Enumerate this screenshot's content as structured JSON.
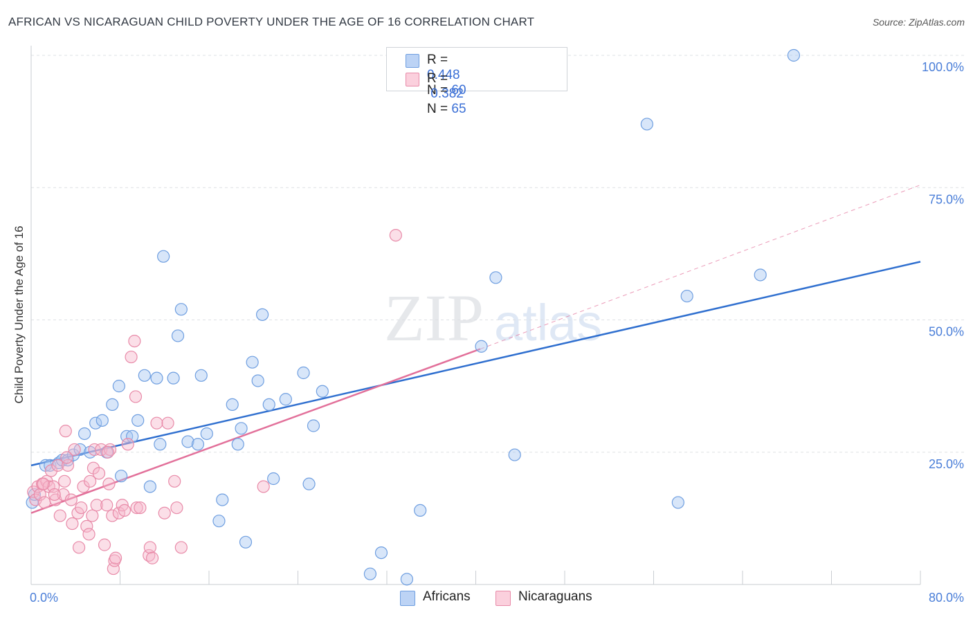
{
  "title": "AFRICAN VS NICARAGUAN CHILD POVERTY UNDER THE AGE OF 16 CORRELATION CHART",
  "source": "Source: ZipAtlas.com",
  "watermark": {
    "zip": "ZIP",
    "atlas": "atlas"
  },
  "legend": {
    "r_label": "R =",
    "n_label": "N =",
    "rows": [
      {
        "name": "Africans",
        "r": "0.448",
        "n": "60",
        "color": "#a9c7f2",
        "stroke": "#6e9ee0"
      },
      {
        "name": "Nicaraguans",
        "r": "0.382",
        "n": "65",
        "color": "#f7b9cc",
        "stroke": "#e88aa8"
      }
    ]
  },
  "chart_data": {
    "type": "scatter",
    "title": "AFRICAN VS NICARAGUAN CHILD POVERTY UNDER THE AGE OF 16 CORRELATION CHART",
    "xlabel": "",
    "ylabel": "Child Poverty Under the Age of 16",
    "xlim": [
      0,
      80
    ],
    "ylim": [
      0,
      100
    ],
    "x_tick_labels": [
      "0.0%",
      "80.0%"
    ],
    "y_tick_labels": [
      "25.0%",
      "50.0%",
      "75.0%",
      "100.0%"
    ],
    "y_tick_values": [
      25,
      50,
      75,
      100
    ],
    "x_ticks_minor": [
      0,
      8,
      16,
      24,
      32,
      40,
      48,
      56,
      64,
      72,
      80
    ],
    "grid": "horizontal dashed",
    "legend_position": "top-center",
    "series": [
      {
        "name": "Africans",
        "color": "#6e9ee0",
        "fill": "#a9c7f2",
        "trend": {
          "x0": 0,
          "y0": 22.5,
          "x1": 80,
          "y1": 61,
          "color": "#2f6fcf"
        },
        "points": [
          [
            0.1,
            15.5
          ],
          [
            0.3,
            17.0
          ],
          [
            1.3,
            22.5
          ],
          [
            1.7,
            22.5
          ],
          [
            2.5,
            23.0
          ],
          [
            2.8,
            23.5
          ],
          [
            3.3,
            23.5
          ],
          [
            3.8,
            24.5
          ],
          [
            4.4,
            25.5
          ],
          [
            4.8,
            28.5
          ],
          [
            5.3,
            25.0
          ],
          [
            5.8,
            30.5
          ],
          [
            6.4,
            31.0
          ],
          [
            6.8,
            25.0
          ],
          [
            7.3,
            34.0
          ],
          [
            7.9,
            37.5
          ],
          [
            8.1,
            20.5
          ],
          [
            8.6,
            28.0
          ],
          [
            9.1,
            28.0
          ],
          [
            9.6,
            31.0
          ],
          [
            10.2,
            39.5
          ],
          [
            10.7,
            18.5
          ],
          [
            11.3,
            39.0
          ],
          [
            11.6,
            26.5
          ],
          [
            11.9,
            62.0
          ],
          [
            12.8,
            39.0
          ],
          [
            13.2,
            47.0
          ],
          [
            13.5,
            52.0
          ],
          [
            14.1,
            27.0
          ],
          [
            15.0,
            26.5
          ],
          [
            15.3,
            39.5
          ],
          [
            15.8,
            28.5
          ],
          [
            16.9,
            12.0
          ],
          [
            17.2,
            16.0
          ],
          [
            18.1,
            34.0
          ],
          [
            18.6,
            26.5
          ],
          [
            18.9,
            29.5
          ],
          [
            19.3,
            8.0
          ],
          [
            19.9,
            42.0
          ],
          [
            20.4,
            38.5
          ],
          [
            20.8,
            51.0
          ],
          [
            21.4,
            34.0
          ],
          [
            21.8,
            20.0
          ],
          [
            22.9,
            35.0
          ],
          [
            24.5,
            40.0
          ],
          [
            25.0,
            19.0
          ],
          [
            25.4,
            30.0
          ],
          [
            26.2,
            36.5
          ],
          [
            30.5,
            2.0
          ],
          [
            31.5,
            6.0
          ],
          [
            33.8,
            1.0
          ],
          [
            35.0,
            14.0
          ],
          [
            40.5,
            45.0
          ],
          [
            41.8,
            58.0
          ],
          [
            43.5,
            24.5
          ],
          [
            55.4,
            87.0
          ],
          [
            58.2,
            15.5
          ],
          [
            59.0,
            54.5
          ],
          [
            65.6,
            58.5
          ],
          [
            68.6,
            100.0
          ]
        ]
      },
      {
        "name": "Nicaraguans",
        "color": "#e88aa8",
        "fill": "#f7b9cc",
        "trend": {
          "x0": 0,
          "y0": 13.5,
          "x1": 40.4,
          "y1": 44.5,
          "color": "#e2709a"
        },
        "trend_ext": {
          "x0": 40.4,
          "y0": 44.5,
          "x1": 80,
          "y1": 75.5
        },
        "points": [
          [
            0.2,
            17.5
          ],
          [
            0.4,
            16.0
          ],
          [
            0.6,
            18.5
          ],
          [
            0.8,
            17.0
          ],
          [
            1.0,
            19.0
          ],
          [
            1.2,
            15.5
          ],
          [
            1.4,
            19.5
          ],
          [
            1.6,
            18.5
          ],
          [
            1.8,
            21.5
          ],
          [
            2.0,
            18.5
          ],
          [
            2.2,
            16.0
          ],
          [
            2.4,
            22.5
          ],
          [
            2.6,
            13.0
          ],
          [
            2.9,
            17.0
          ],
          [
            3.0,
            19.5
          ],
          [
            3.1,
            29.0
          ],
          [
            3.3,
            22.5
          ],
          [
            3.6,
            16.0
          ],
          [
            3.7,
            11.5
          ],
          [
            3.9,
            25.5
          ],
          [
            4.2,
            13.5
          ],
          [
            4.3,
            7.0
          ],
          [
            4.5,
            14.5
          ],
          [
            4.7,
            18.5
          ],
          [
            5.0,
            11.0
          ],
          [
            5.2,
            9.5
          ],
          [
            5.3,
            19.5
          ],
          [
            5.5,
            13.0
          ],
          [
            5.6,
            22.0
          ],
          [
            5.7,
            25.5
          ],
          [
            5.9,
            15.0
          ],
          [
            6.1,
            21.0
          ],
          [
            6.3,
            25.5
          ],
          [
            6.6,
            7.5
          ],
          [
            6.8,
            15.0
          ],
          [
            7.0,
            19.0
          ],
          [
            7.1,
            25.5
          ],
          [
            7.3,
            13.0
          ],
          [
            7.4,
            3.0
          ],
          [
            7.5,
            4.5
          ],
          [
            7.6,
            5.0
          ],
          [
            7.9,
            13.5
          ],
          [
            8.2,
            15.0
          ],
          [
            8.4,
            14.0
          ],
          [
            8.7,
            26.5
          ],
          [
            9.0,
            43.0
          ],
          [
            9.3,
            46.0
          ],
          [
            9.4,
            35.5
          ],
          [
            9.5,
            14.5
          ],
          [
            9.8,
            14.5
          ],
          [
            10.6,
            5.5
          ],
          [
            10.7,
            7.0
          ],
          [
            10.9,
            5.0
          ],
          [
            11.3,
            30.5
          ],
          [
            12.0,
            13.5
          ],
          [
            12.3,
            30.5
          ],
          [
            12.9,
            19.5
          ],
          [
            13.1,
            14.5
          ],
          [
            13.5,
            7.0
          ],
          [
            20.9,
            18.5
          ],
          [
            32.8,
            66.0
          ],
          [
            1.1,
            19.0
          ],
          [
            2.1,
            17.0
          ],
          [
            3.2,
            24.0
          ],
          [
            6.9,
            25.0
          ]
        ]
      }
    ]
  }
}
